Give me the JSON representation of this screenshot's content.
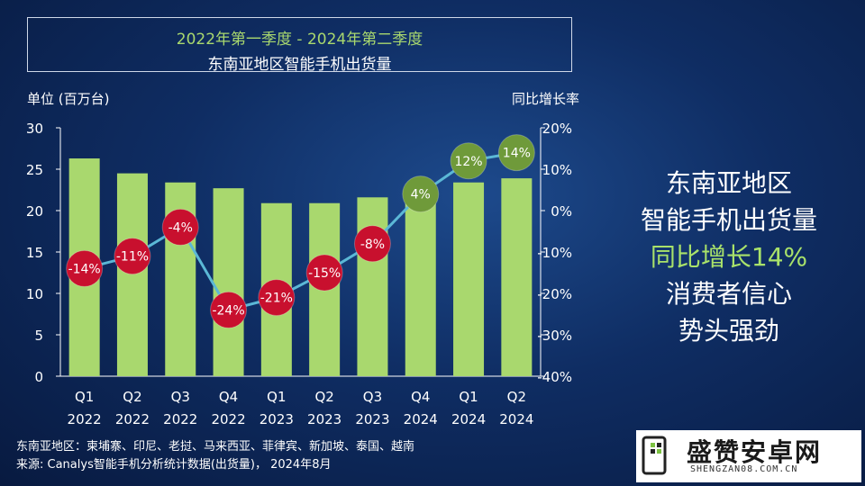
{
  "title": {
    "line1": "2022年第一季度 -  2024年第二季度",
    "line2": "东南亚地区智能手机出货量"
  },
  "axes": {
    "left_title": "单位 (百万台)",
    "right_title": "同比增长率"
  },
  "side_text": {
    "line1": "东南亚地区",
    "line2": "智能手机出货量",
    "line3": "同比增长14%",
    "line4": "消费者信心",
    "line5": "势头强劲"
  },
  "notes": {
    "line1": "东南亚地区：柬埔寨、印尼、老挝、马来西亚、菲律宾、新加坡、泰国、越南",
    "line2": "来源: Canalys智能手机分析统计数据(出货量)，  2024年8月"
  },
  "logo": {
    "main": "盛赞安卓网",
    "sub": "SHENGZAN08.COM.CN"
  },
  "colors": {
    "bar": "#a9d86e",
    "line": "#5bb8d6",
    "negative_bubble": "#c8102e",
    "positive_bubble": "#6f9a3a",
    "highlight_text": "#a9e26a"
  },
  "chart_data": {
    "type": "bar",
    "categories": [
      [
        "Q1",
        "2022"
      ],
      [
        "Q2",
        "2022"
      ],
      [
        "Q3",
        "2022"
      ],
      [
        "Q4",
        "2022"
      ],
      [
        "Q1",
        "2023"
      ],
      [
        "Q2",
        "2023"
      ],
      [
        "Q3",
        "2023"
      ],
      [
        "Q4",
        "2024"
      ],
      [
        "Q1",
        "2024"
      ],
      [
        "Q2",
        "2024"
      ]
    ],
    "series": [
      {
        "type": "bar",
        "axis": "left",
        "values": [
          26.3,
          24.5,
          23.4,
          22.7,
          20.9,
          20.9,
          21.6,
          21.0,
          23.4,
          23.9
        ]
      },
      {
        "type": "line",
        "axis": "right",
        "values": [
          -14,
          -11,
          -4,
          -24,
          -21,
          -15,
          -8,
          4,
          12,
          14
        ],
        "labels": [
          "-14%",
          "-11%",
          "-4%",
          "-24%",
          "-21%",
          "-15%",
          "-8%",
          "4%",
          "12%",
          "14%"
        ]
      }
    ],
    "y_left": {
      "min": 0,
      "max": 30,
      "ticks": [
        "0",
        "5",
        "10",
        "15",
        "20",
        "25",
        "30"
      ]
    },
    "y_right": {
      "min": -40,
      "max": 20,
      "ticks": [
        "-40%",
        "-30%",
        "-20%",
        "-10%",
        "0%",
        "10%",
        "20%"
      ]
    },
    "grid": false
  }
}
